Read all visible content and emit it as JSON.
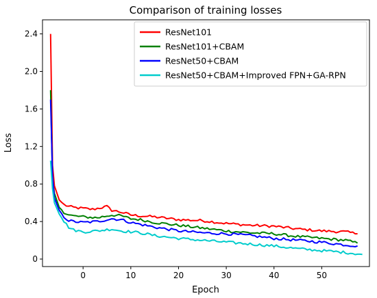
{
  "chart_data": {
    "type": "line",
    "title": "Comparison of training losses",
    "xlabel": "Epoch",
    "ylabel": "Loss",
    "xlim": [
      -8.5,
      60
    ],
    "ylim": [
      -0.08,
      2.55
    ],
    "xticks": [
      0,
      10,
      20,
      30,
      40,
      50
    ],
    "yticks": [
      0,
      0.4,
      0.8,
      1.2,
      1.6,
      2.0,
      2.4
    ],
    "ytick_labels": [
      "0",
      "0.4",
      "0.8",
      "1.2",
      "1.6",
      "2.0",
      "2.4"
    ],
    "grid": false,
    "legend_position": "top-right",
    "series": [
      {
        "name": "ResNet101",
        "color": "#ff0000",
        "x": [
          -6.8,
          -6.4,
          -6,
          -5,
          -4,
          -3,
          -2,
          0,
          2,
          4,
          5,
          6,
          8,
          10,
          12,
          15,
          20,
          25,
          30,
          35,
          40,
          45,
          50,
          55,
          57.5
        ],
        "y": [
          2.4,
          1.0,
          0.78,
          0.63,
          0.58,
          0.56,
          0.55,
          0.54,
          0.53,
          0.55,
          0.56,
          0.52,
          0.5,
          0.47,
          0.46,
          0.45,
          0.42,
          0.41,
          0.38,
          0.36,
          0.35,
          0.32,
          0.3,
          0.29,
          0.27
        ]
      },
      {
        "name": "ResNet101+CBAM",
        "color": "#008000",
        "x": [
          -6.8,
          -6.4,
          -6,
          -5,
          -4,
          -3,
          -2,
          0,
          3,
          6,
          8,
          10,
          12,
          15,
          20,
          25,
          30,
          35,
          40,
          45,
          50,
          55,
          57.5
        ],
        "y": [
          1.8,
          0.85,
          0.7,
          0.55,
          0.5,
          0.47,
          0.46,
          0.45,
          0.44,
          0.47,
          0.46,
          0.43,
          0.42,
          0.39,
          0.36,
          0.33,
          0.3,
          0.28,
          0.27,
          0.24,
          0.22,
          0.2,
          0.17
        ]
      },
      {
        "name": "ResNet50+CBAM",
        "color": "#0000ff",
        "x": [
          -6.8,
          -6.4,
          -6,
          -5,
          -4,
          -3,
          -2,
          0,
          3,
          6,
          8,
          10,
          12,
          15,
          20,
          25,
          30,
          35,
          40,
          45,
          50,
          55,
          57.5
        ],
        "y": [
          1.7,
          0.9,
          0.65,
          0.52,
          0.45,
          0.41,
          0.4,
          0.39,
          0.4,
          0.43,
          0.42,
          0.39,
          0.37,
          0.34,
          0.3,
          0.28,
          0.27,
          0.25,
          0.22,
          0.2,
          0.18,
          0.15,
          0.14
        ]
      },
      {
        "name": "ResNet50+CBAM+Improved FPN+GA-RPN",
        "color": "#00cccc",
        "x": [
          -6.8,
          -6.4,
          -6,
          -5,
          -4,
          -3,
          -2,
          0,
          3,
          6,
          8,
          10,
          12,
          15,
          20,
          25,
          30,
          35,
          40,
          45,
          50,
          55,
          58.5
        ],
        "y": [
          1.05,
          0.75,
          0.6,
          0.48,
          0.4,
          0.34,
          0.31,
          0.29,
          0.3,
          0.32,
          0.3,
          0.29,
          0.28,
          0.25,
          0.22,
          0.2,
          0.18,
          0.16,
          0.14,
          0.11,
          0.09,
          0.07,
          0.05
        ]
      }
    ]
  }
}
